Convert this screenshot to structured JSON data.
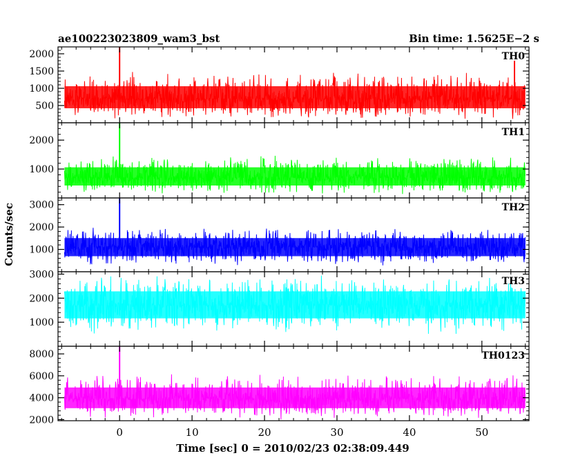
{
  "header": {
    "left_title": "ae100223023809_wam3_bst",
    "right_title": "Bin time: 1.5625E−2 s"
  },
  "chart_data": {
    "type": "line",
    "ylabel": "Counts/sec",
    "xlabel": "Time [sec] 0 = 2010/02/23 02:38:09.449",
    "xlim": [
      -8.5,
      56.5
    ],
    "x_ticks": [
      0,
      10,
      20,
      30,
      40,
      50
    ],
    "x_tick_labels": [
      "0",
      "10",
      "20",
      "30",
      "40",
      "50"
    ],
    "data_x_range": [
      -7.6,
      56.0
    ],
    "panels": [
      {
        "name": "TH0",
        "color": "#ff0000",
        "ylim": [
          0,
          2200
        ],
        "y_ticks": [
          500,
          1000,
          1500,
          2000
        ],
        "y_tick_labels": [
          "500",
          "1000",
          "1500",
          "2000"
        ],
        "baseline": 700,
        "noise_low": 80,
        "noise_high": 1500,
        "peaks": [
          {
            "x": 0.0,
            "y": 2200
          },
          {
            "x": 54.5,
            "y": 1800
          }
        ]
      },
      {
        "name": "TH1",
        "color": "#00ff00",
        "ylim": [
          0,
          2600
        ],
        "y_ticks": [
          1000,
          2000
        ],
        "y_tick_labels": [
          "1000",
          "2000"
        ],
        "baseline": 700,
        "noise_low": 100,
        "noise_high": 1500,
        "peaks": [
          {
            "x": 0.0,
            "y": 2600
          }
        ]
      },
      {
        "name": "TH2",
        "color": "#0000ff",
        "ylim": [
          0,
          3300
        ],
        "y_ticks": [
          1000,
          2000,
          3000
        ],
        "y_tick_labels": [
          "1000",
          "2000",
          "3000"
        ],
        "baseline": 1100,
        "noise_low": 200,
        "noise_high": 2000,
        "peaks": [
          {
            "x": 0.0,
            "y": 3300
          }
        ]
      },
      {
        "name": "TH3",
        "color": "#00ffff",
        "ylim": [
          0,
          3100
        ],
        "y_ticks": [
          1000,
          2000,
          3000
        ],
        "y_tick_labels": [
          "1000",
          "2000",
          "3000"
        ],
        "baseline": 1700,
        "noise_low": 500,
        "noise_high": 3000,
        "peaks": []
      },
      {
        "name": "TH0123",
        "color": "#ff00ff",
        "ylim": [
          1900,
          8700
        ],
        "y_ticks": [
          2000,
          4000,
          6000,
          8000
        ],
        "y_tick_labels": [
          "2000",
          "4000",
          "6000",
          "8000"
        ],
        "baseline": 3900,
        "noise_low": 2000,
        "noise_high": 6200,
        "peaks": [
          {
            "x": 0.0,
            "y": 8700
          }
        ]
      }
    ]
  }
}
